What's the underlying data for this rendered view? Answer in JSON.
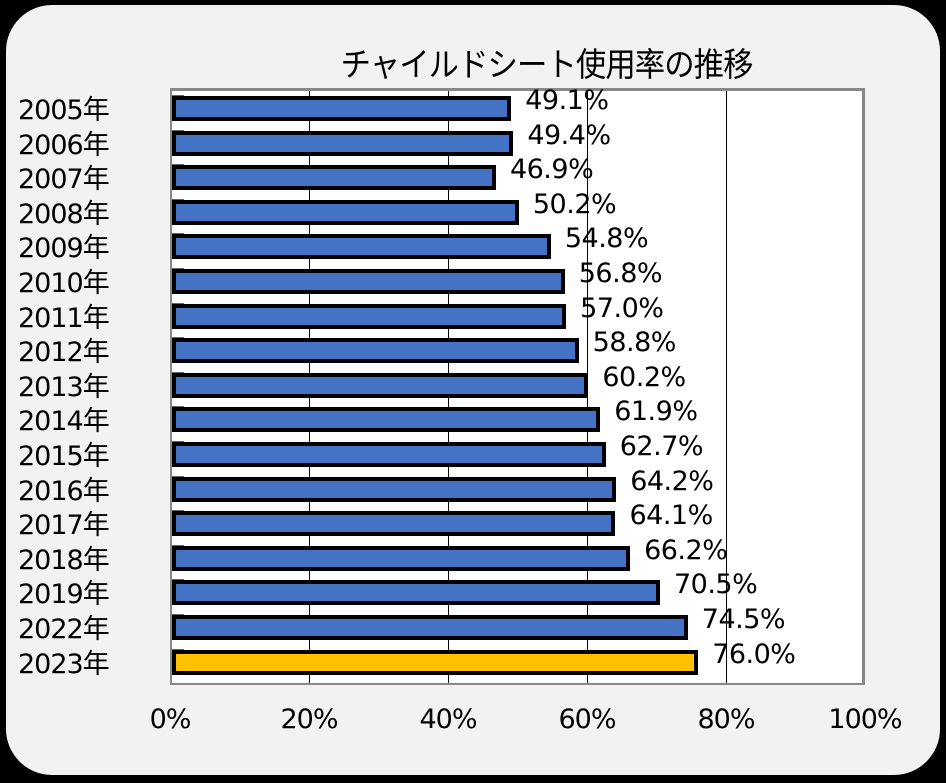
{
  "chart_data": {
    "type": "bar",
    "orientation": "horizontal",
    "title": "チャイルドシート使用率の推移",
    "xlabel": "",
    "ylabel": "",
    "categories": [
      "2005年",
      "2006年",
      "2007年",
      "2008年",
      "2009年",
      "2010年",
      "2011年",
      "2012年",
      "2013年",
      "2014年",
      "2015年",
      "2016年",
      "2017年",
      "2018年",
      "2019年",
      "2022年",
      "2023年"
    ],
    "values": [
      49.1,
      49.4,
      46.9,
      50.2,
      54.8,
      56.8,
      57.0,
      58.8,
      60.2,
      61.9,
      62.7,
      64.2,
      64.1,
      66.2,
      70.5,
      74.5,
      76.0
    ],
    "value_labels": [
      "49.1%",
      "49.4%",
      "46.9%",
      "50.2%",
      "54.8%",
      "56.8%",
      "57.0%",
      "58.8%",
      "60.2%",
      "61.9%",
      "62.7%",
      "64.2%",
      "64.1%",
      "66.2%",
      "70.5%",
      "74.5%",
      "76.0%"
    ],
    "xlim": [
      0,
      100
    ],
    "x_ticks": [
      "0%",
      "20%",
      "40%",
      "60%",
      "80%",
      "100%"
    ],
    "grid": true,
    "legend": "none",
    "colors": {
      "default_bar": "#4472c4",
      "highlight_bar": "#ffc000",
      "bar_border": "#000000",
      "plot_bg": "#ffffff",
      "card_bg": "#f2f2f2",
      "outer_bg": "#000000"
    },
    "highlight_index": 16
  }
}
